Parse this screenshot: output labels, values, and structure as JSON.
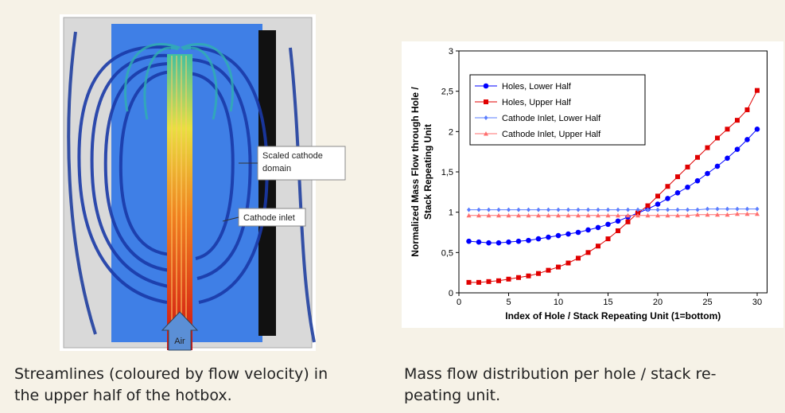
{
  "image": {
    "labels": {
      "scaled_cathode_domain": [
        "Scaled cathode",
        "domain"
      ],
      "cathode_inlet": "Cathode inlet",
      "air": "Air"
    }
  },
  "captions": {
    "left": [
      "Streamlines (coloured by flow velocity) in",
      "the upper half of the hotbox."
    ],
    "right": [
      "Mass flow distribution per hole / stack re-",
      "peating unit."
    ]
  },
  "chart_data": {
    "type": "line",
    "xlabel": "Index of Hole / Stack Repeating Unit (1=bottom)",
    "ylabel": [
      "Normalized Mass Flow through Hole /",
      "Stack Repeating Unit"
    ],
    "x": [
      1,
      2,
      3,
      4,
      5,
      6,
      7,
      8,
      9,
      10,
      11,
      12,
      13,
      14,
      15,
      16,
      17,
      18,
      19,
      20,
      21,
      22,
      23,
      24,
      25,
      26,
      27,
      28,
      29,
      30
    ],
    "xlim": [
      0,
      31
    ],
    "xticks": [
      0,
      5,
      10,
      15,
      20,
      25,
      30
    ],
    "ylim": [
      0,
      3
    ],
    "yticks": [
      0,
      {
        "value": 0.5,
        "label": "0,5"
      },
      1,
      {
        "value": 1.5,
        "label": "1,5"
      },
      2,
      {
        "value": 2.5,
        "label": "2,5"
      },
      3
    ],
    "legend": "upper left",
    "series": [
      {
        "name": "Holes, Lower Half",
        "color": "#0000ff",
        "marker": "circle",
        "values": [
          0.64,
          0.63,
          0.62,
          0.62,
          0.63,
          0.64,
          0.65,
          0.67,
          0.69,
          0.71,
          0.73,
          0.75,
          0.78,
          0.81,
          0.85,
          0.89,
          0.94,
          0.99,
          1.04,
          1.1,
          1.17,
          1.24,
          1.31,
          1.39,
          1.48,
          1.57,
          1.67,
          1.78,
          1.9,
          2.03
        ]
      },
      {
        "name": "Holes, Upper Half",
        "color": "#e00000",
        "marker": "square",
        "values": [
          0.13,
          0.13,
          0.14,
          0.15,
          0.17,
          0.19,
          0.21,
          0.24,
          0.28,
          0.32,
          0.37,
          0.43,
          0.5,
          0.58,
          0.67,
          0.77,
          0.88,
          0.99,
          1.08,
          1.2,
          1.32,
          1.44,
          1.56,
          1.68,
          1.8,
          1.92,
          2.03,
          2.14,
          2.27,
          2.51
        ]
      },
      {
        "name": "Cathode Inlet, Lower Half",
        "color": "#5a7dff",
        "marker": "diamond",
        "values": [
          1.03,
          1.03,
          1.03,
          1.03,
          1.03,
          1.03,
          1.03,
          1.03,
          1.03,
          1.03,
          1.03,
          1.03,
          1.03,
          1.03,
          1.03,
          1.03,
          1.03,
          1.03,
          1.03,
          1.03,
          1.03,
          1.03,
          1.03,
          1.03,
          1.04,
          1.04,
          1.04,
          1.04,
          1.04,
          1.04
        ]
      },
      {
        "name": "Cathode Inlet, Upper Half",
        "color": "#ff6f6f",
        "marker": "triangle",
        "values": [
          0.96,
          0.96,
          0.96,
          0.96,
          0.96,
          0.96,
          0.96,
          0.96,
          0.96,
          0.96,
          0.96,
          0.96,
          0.96,
          0.96,
          0.96,
          0.96,
          0.96,
          0.96,
          0.96,
          0.96,
          0.96,
          0.96,
          0.96,
          0.97,
          0.97,
          0.97,
          0.97,
          0.98,
          0.98,
          0.98
        ]
      }
    ]
  }
}
